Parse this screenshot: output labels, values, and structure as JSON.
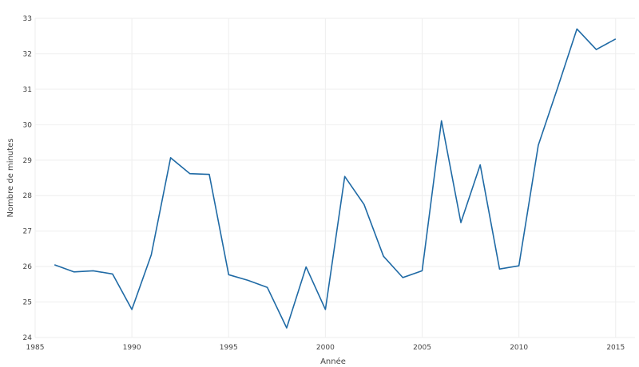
{
  "chart_data": {
    "type": "line",
    "title": "",
    "xlabel": "Année",
    "ylabel": "Nombre de minutes",
    "xlim": [
      1985,
      1986.2
    ],
    "ylim": [
      24,
      33
    ],
    "grid": true,
    "legend": "none",
    "line_color": "#1f6aa5",
    "x_ticks": [
      1985,
      1990,
      1995,
      2000,
      2005,
      2010,
      2015
    ],
    "y_ticks": [
      24,
      25,
      26,
      27,
      28,
      29,
      30,
      31,
      32,
      33
    ],
    "series": [
      {
        "x": [
          1986,
          1987,
          1988,
          1989,
          1990,
          1991,
          1992,
          1993,
          1994,
          1995,
          1996,
          1997,
          1998,
          1999,
          2000,
          2001,
          2002,
          2003,
          2004,
          2005,
          2006,
          2007,
          2008,
          2009,
          2010,
          2011,
          2012,
          2013,
          2014,
          2015
        ],
        "y": [
          26.05,
          25.85,
          25.88,
          25.79,
          24.79,
          26.33,
          29.07,
          28.62,
          28.6,
          25.77,
          25.61,
          25.41,
          24.27,
          25.99,
          24.79,
          28.54,
          27.75,
          26.29,
          25.69,
          25.88,
          30.11,
          27.24,
          28.87,
          25.93,
          26.02,
          29.42,
          31.04,
          32.7,
          32.12,
          32.42
        ]
      }
    ]
  }
}
